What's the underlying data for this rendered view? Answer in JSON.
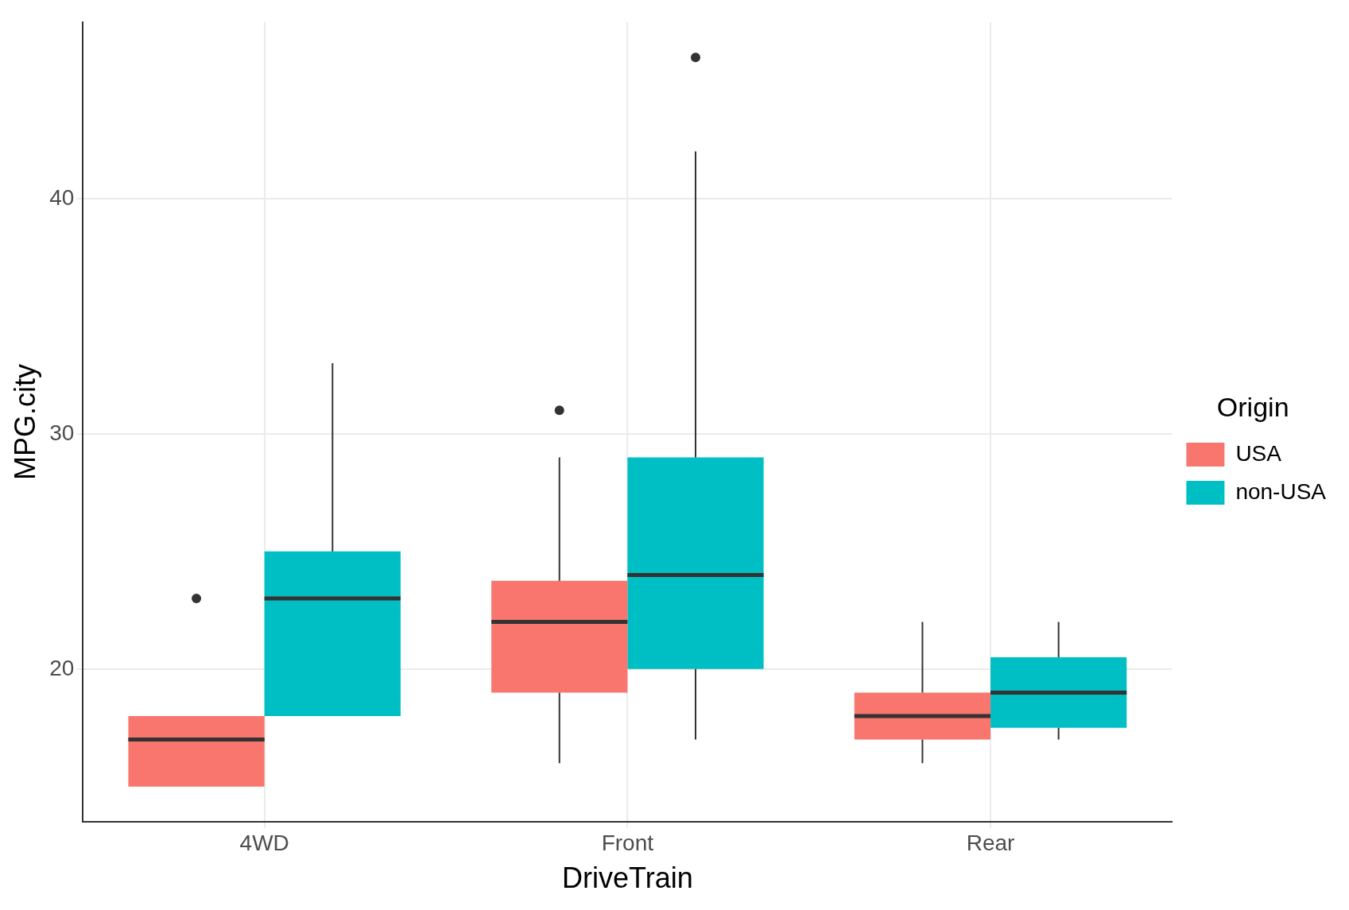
{
  "chart_data": {
    "type": "box",
    "xlabel": "DriveTrain",
    "ylabel": "MPG.city",
    "legend_title": "Origin",
    "categories": [
      "4WD",
      "Front",
      "Rear"
    ],
    "series": [
      {
        "name": "USA",
        "color": "#f8766d",
        "boxes": [
          {
            "low": 15,
            "q1": 15,
            "median": 17,
            "q3": 18,
            "high": 18,
            "outliers": [
              23
            ]
          },
          {
            "low": 16,
            "q1": 19,
            "median": 22,
            "q3": 23.75,
            "high": 29,
            "outliers": [
              31
            ]
          },
          {
            "low": 16,
            "q1": 17,
            "median": 18,
            "q3": 19,
            "high": 22
          }
        ]
      },
      {
        "name": "non-USA",
        "color": "#00bfc4",
        "boxes": [
          {
            "low": 18,
            "q1": 18,
            "median": 23,
            "q3": 25,
            "high": 33
          },
          {
            "low": 17,
            "q1": 20,
            "median": 24,
            "q3": 29,
            "high": 42,
            "outliers": [
              46
            ]
          },
          {
            "low": 17,
            "q1": 17.5,
            "median": 19,
            "q3": 20.5,
            "high": 22
          }
        ]
      }
    ],
    "ylim": [
      13.5,
      47.5
    ],
    "yticks": [
      20,
      30,
      40
    ],
    "grid": true,
    "legend": "right"
  }
}
